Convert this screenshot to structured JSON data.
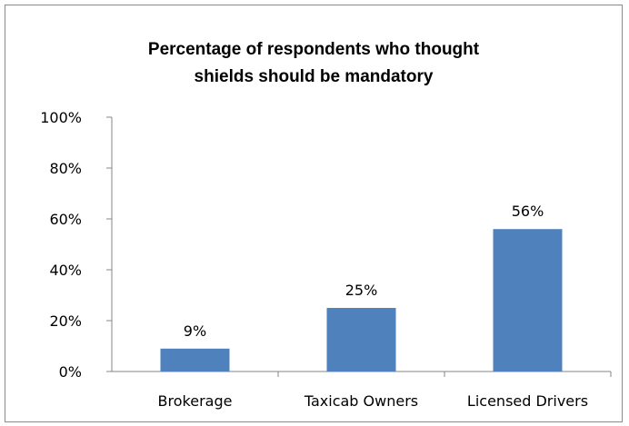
{
  "chart_data": {
    "type": "bar",
    "title_lines": [
      "Percentage of respondents who thought",
      "shields should be mandatory"
    ],
    "categories": [
      "Brokerage",
      "Taxicab Owners",
      "Licensed Drivers"
    ],
    "values": [
      9,
      25,
      56
    ],
    "data_labels": [
      "9%",
      "25%",
      "56%"
    ],
    "yticks": [
      "0%",
      "20%",
      "40%",
      "60%",
      "80%",
      "100%"
    ],
    "ylim": [
      0,
      100
    ],
    "grid": false,
    "legend": "none",
    "bar_color": "#4f81bd"
  }
}
